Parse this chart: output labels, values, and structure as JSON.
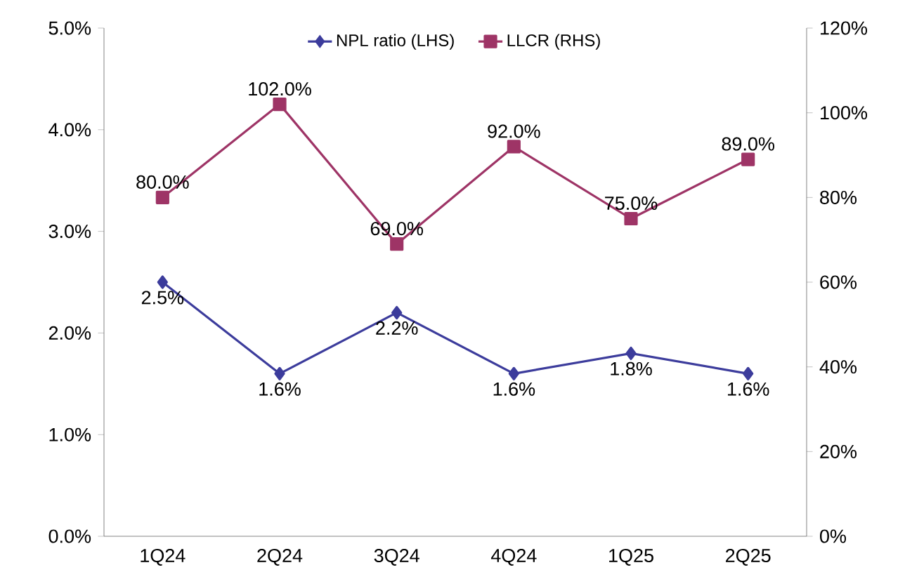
{
  "chart_data": {
    "type": "line",
    "categories": [
      "1Q24",
      "2Q24",
      "3Q24",
      "4Q24",
      "1Q25",
      "2Q25"
    ],
    "series": [
      {
        "name": "NPL ratio (LHS)",
        "color": "#3c3c9c",
        "marker": "diamond",
        "values": [
          2.5,
          1.6,
          2.2,
          1.6,
          1.8,
          1.6
        ],
        "value_labels": [
          "2.5%",
          "1.6%",
          "2.2%",
          "1.6%",
          "1.8%",
          "1.6%"
        ]
      },
      {
        "name": "LLCR (RHS)",
        "color": "#9e3466",
        "marker": "square",
        "axis": "y2",
        "values": [
          80,
          102,
          69,
          92,
          75,
          89
        ],
        "value_labels": [
          "80.0%",
          "102.0%",
          "69.0%",
          "92.0%",
          "75.0%",
          "89.0%"
        ]
      }
    ],
    "ylim": [
      0,
      5
    ],
    "yticks": [
      {
        "value": 0,
        "label": "0.0%"
      },
      {
        "value": 1,
        "label": "1.0%"
      },
      {
        "value": 2,
        "label": "2.0%"
      },
      {
        "value": 3,
        "label": "3.0%"
      },
      {
        "value": 4,
        "label": "4.0%"
      },
      {
        "value": 5,
        "label": "5.0%"
      }
    ],
    "y2lim": [
      0,
      120
    ],
    "y2ticks": [
      {
        "value": 0,
        "label": "0%"
      },
      {
        "value": 20,
        "label": "20%"
      },
      {
        "value": 40,
        "label": "40%"
      },
      {
        "value": 60,
        "label": "60%"
      },
      {
        "value": 80,
        "label": "80%"
      },
      {
        "value": 100,
        "label": "100%"
      },
      {
        "value": 120,
        "label": "120%"
      }
    ],
    "grid": false,
    "legend": "top",
    "line_style": "solid"
  }
}
